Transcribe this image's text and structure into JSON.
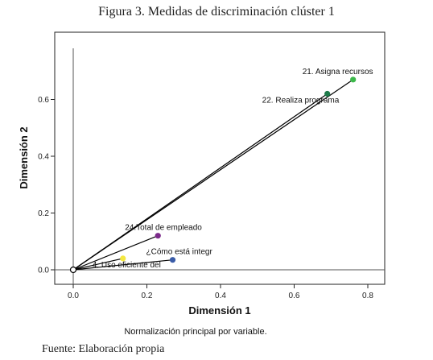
{
  "figure_title": "Figura 3. Medidas de discriminación clúster 1",
  "source": "Fuente: Elaboración propia",
  "chart_data": {
    "type": "scatter",
    "title": "",
    "xlabel": "Dimensión 1",
    "ylabel": "Dimensión 2",
    "xlim": [
      -0.05,
      0.83
    ],
    "ylim": [
      -0.05,
      0.78
    ],
    "x_ticks": [
      "0.0",
      "0.2",
      "0.4",
      "0.6",
      "0.8"
    ],
    "y_ticks": [
      "0.0",
      "0.2",
      "0.4",
      "0.6"
    ],
    "grid": false,
    "vectors_from_origin": true,
    "footnote": "Normalización principal por variable.",
    "points": [
      {
        "label": "21. Asigna recursos",
        "x": 0.76,
        "y": 0.67,
        "color": "#3cb84a"
      },
      {
        "label": "22. Realiza programa",
        "x": 0.69,
        "y": 0.62,
        "color": "#1e7a4a"
      },
      {
        "label": "24.Total de empleado",
        "x": 0.23,
        "y": 0.12,
        "color": "#7b2a8a"
      },
      {
        "label": "¿Cómo está integr",
        "x": 0.27,
        "y": 0.035,
        "color": "#3a5ca8"
      },
      {
        "label": "4. Uso eficiente del",
        "x": 0.135,
        "y": 0.04,
        "color": "#f4e842"
      }
    ]
  }
}
